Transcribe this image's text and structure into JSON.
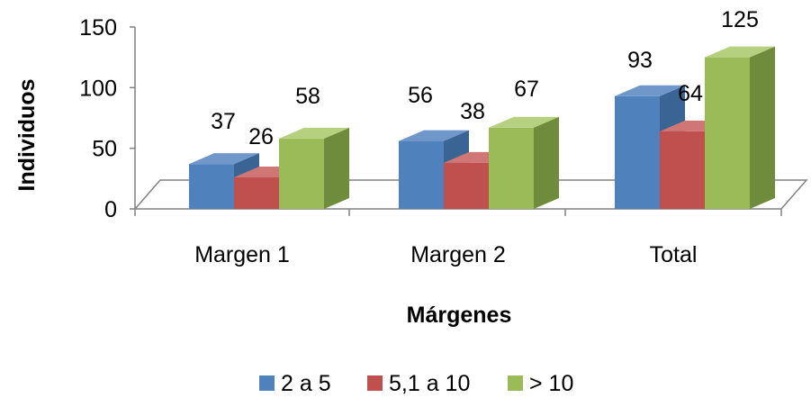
{
  "chart_data": {
    "type": "bar",
    "title": "",
    "xlabel": "Márgenes",
    "ylabel": "Individuos",
    "categories": [
      "Margen 1",
      "Margen 2",
      "Total"
    ],
    "series": [
      {
        "name": "2 a 5",
        "values": [
          37,
          56,
          93
        ],
        "color": "#4f81bd",
        "color_dark": "#3a6493",
        "color_top": "#6f97c9"
      },
      {
        "name": "5,1 a 10",
        "values": [
          26,
          38,
          64
        ],
        "color": "#c0504d",
        "color_dark": "#92403c",
        "color_top": "#d07775"
      },
      {
        "name": "> 10",
        "values": [
          58,
          67,
          125
        ],
        "color": "#9bbb59",
        "color_dark": "#6f8c3d",
        "color_top": "#b5d07e"
      }
    ],
    "yticks": [
      "0",
      "50",
      "100",
      "150"
    ],
    "ylim": [
      0,
      150
    ],
    "legend_position": "bottom",
    "style": "3d-clustered-column"
  }
}
